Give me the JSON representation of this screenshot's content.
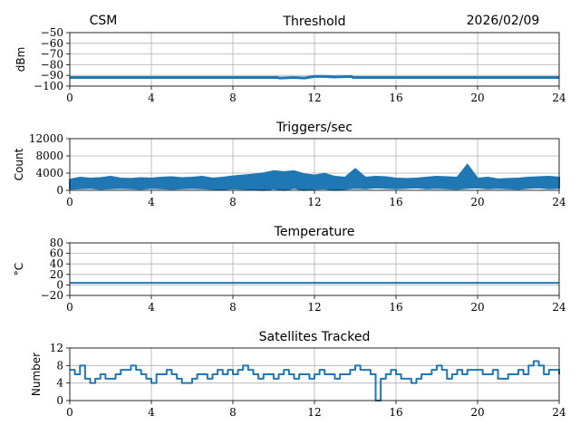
{
  "header": {
    "left": "CSM",
    "center": "Threshold",
    "right": "2026/02/09"
  },
  "colors": {
    "line": "#1f77b4",
    "grid": "#b0b0b0"
  },
  "chart_data": [
    {
      "type": "line",
      "title": "Threshold",
      "ylabel": "dBm",
      "xlim": [
        0,
        24
      ],
      "ylim": [
        -100,
        -50
      ],
      "xticks": [
        0,
        4,
        8,
        12,
        16,
        20,
        24
      ],
      "yticks": [
        -50,
        -60,
        -70,
        -80,
        -90,
        -100
      ],
      "ytick_labels": [
        "−50",
        "−60",
        "−70",
        "−80",
        "−90",
        "−100"
      ],
      "grid": true,
      "x": [
        0,
        10.2,
        10.3,
        11.0,
        11.5,
        12.0,
        12.5,
        13.0,
        13.8,
        13.9,
        24
      ],
      "values": [
        -92,
        -92,
        -92.5,
        -92,
        -92.5,
        -91,
        -91,
        -91.5,
        -91,
        -92,
        -92
      ]
    },
    {
      "type": "line",
      "title": "Triggers/sec",
      "ylabel": "Count",
      "xlim": [
        0,
        24
      ],
      "ylim": [
        0,
        12000
      ],
      "xticks": [
        0,
        4,
        8,
        12,
        16,
        20,
        24
      ],
      "yticks": [
        0,
        4000,
        8000,
        12000
      ],
      "ytick_labels": [
        "0",
        "4000",
        "8000",
        "12000"
      ],
      "grid": true,
      "x_step": 0.5,
      "upper": [
        2500,
        3000,
        2800,
        2900,
        3200,
        2800,
        2700,
        2900,
        2800,
        3000,
        3100,
        2900,
        3000,
        3200,
        2800,
        3000,
        3300,
        3500,
        3700,
        4000,
        4500,
        4300,
        4500,
        3800,
        3500,
        3900,
        3200,
        3000,
        5000,
        3000,
        3200,
        3100,
        2800,
        2700,
        2800,
        3000,
        3200,
        3100,
        3000,
        6000,
        2800,
        3000,
        2600,
        2700,
        2800,
        3000,
        3100,
        3200,
        3000
      ],
      "lower": [
        300,
        400,
        500,
        300,
        400,
        500,
        400,
        300,
        500,
        400,
        300,
        400,
        500,
        400,
        300,
        200,
        400,
        300,
        200,
        0,
        400,
        0,
        500,
        0,
        300,
        400,
        0,
        300,
        500,
        400,
        600,
        500,
        400,
        500,
        600,
        400,
        500,
        400,
        300,
        500,
        600,
        400,
        500,
        400,
        300,
        500,
        600,
        400,
        500
      ]
    },
    {
      "type": "line",
      "title": "Temperature",
      "ylabel": "°C",
      "xlim": [
        0,
        24
      ],
      "ylim": [
        -20,
        80
      ],
      "xticks": [
        0,
        4,
        8,
        12,
        16,
        20,
        24
      ],
      "yticks": [
        -20,
        0,
        20,
        40,
        60,
        80
      ],
      "ytick_labels": [
        "−20",
        "0",
        "20",
        "40",
        "60",
        "80"
      ],
      "grid": true,
      "x": [
        0,
        24
      ],
      "values": [
        4,
        4
      ]
    },
    {
      "type": "line",
      "title": "Satellites Tracked",
      "ylabel": "Number",
      "xlim": [
        0,
        24
      ],
      "ylim": [
        0,
        12
      ],
      "xticks": [
        0,
        4,
        8,
        12,
        16,
        20,
        24
      ],
      "yticks": [
        0,
        4,
        8,
        12
      ],
      "ytick_labels": [
        "0",
        "4",
        "8",
        "12"
      ],
      "grid": true,
      "x_step": 0.25,
      "values": [
        7,
        6,
        8,
        5,
        4,
        5,
        6,
        5,
        5,
        6,
        7,
        7,
        8,
        7,
        6,
        5,
        4,
        6,
        6,
        7,
        6,
        5,
        4,
        4,
        5,
        6,
        6,
        5,
        6,
        7,
        6,
        7,
        6,
        7,
        8,
        7,
        6,
        5,
        6,
        6,
        5,
        6,
        7,
        6,
        5,
        6,
        6,
        5,
        6,
        7,
        6,
        6,
        5,
        6,
        6,
        7,
        8,
        7,
        7,
        6,
        0,
        5,
        6,
        7,
        6,
        5,
        5,
        4,
        5,
        6,
        6,
        7,
        8,
        7,
        5,
        6,
        7,
        6,
        7,
        7,
        7,
        6,
        6,
        7,
        5,
        5,
        6,
        6,
        7,
        6,
        8,
        9,
        8,
        6,
        7,
        7,
        6
      ]
    }
  ]
}
